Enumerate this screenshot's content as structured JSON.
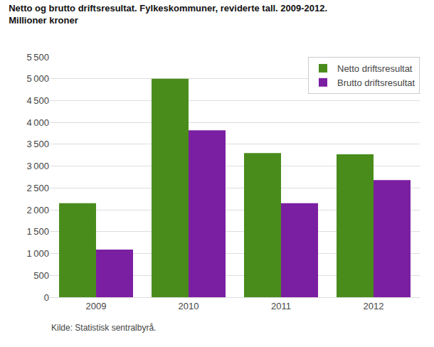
{
  "chart_data": {
    "type": "bar",
    "title": "Netto og brutto driftsresultat. Fylkeskommuner, reviderte tall. 2009-2012.",
    "subtitle": "Millioner kroner",
    "annotations": [
      "Kilde: Statistisk sentralbyrå."
    ],
    "categories": [
      "2009",
      "2010",
      "2011",
      "2012"
    ],
    "series": [
      {
        "name": "Netto driftsresultat",
        "color": "#4a8c1c",
        "values": [
          2150,
          5000,
          3300,
          3270
        ]
      },
      {
        "name": "Brutto driftsresultat",
        "color": "#7b1fa2",
        "values": [
          1090,
          3820,
          2150,
          2680
        ]
      }
    ],
    "ylim": [
      0,
      5500
    ],
    "yticks": [
      0,
      500,
      {
        "value": 1000,
        "label": "1 000"
      },
      {
        "value": 1500,
        "label": "1 500"
      },
      {
        "value": 2000,
        "label": "2 000"
      },
      {
        "value": 2500,
        "label": "2 500"
      },
      {
        "value": 3000,
        "label": "3 000"
      },
      {
        "value": 3500,
        "label": "3 500"
      },
      {
        "value": 4000,
        "label": "4 000"
      },
      {
        "value": 4500,
        "label": "4 500"
      },
      {
        "value": 5000,
        "label": "5 000"
      },
      {
        "value": 5500,
        "label": "5 500"
      }
    ],
    "grid": true,
    "legend": "upper right"
  }
}
